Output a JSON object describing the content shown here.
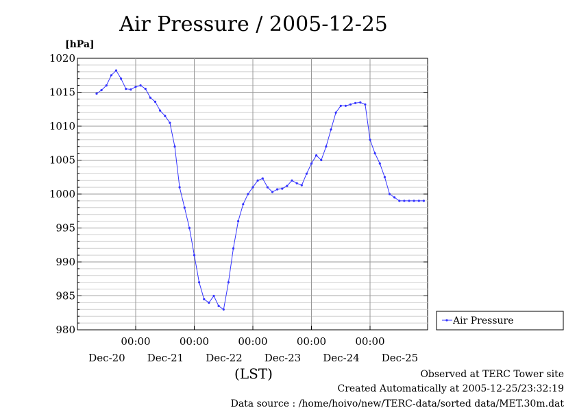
{
  "chart_data": {
    "type": "line",
    "title": "Air Pressure / 2005-12-25",
    "ylabel": "[hPa]",
    "xlabel": "(LST)",
    "ylim": [
      980,
      1020
    ],
    "yticks": [
      980,
      985,
      990,
      995,
      1000,
      1005,
      1010,
      1015,
      1020
    ],
    "xticks_time": [
      "00:00",
      "00:00",
      "00:00",
      "00:00",
      "00:00"
    ],
    "xticks_date": [
      "Dec-20",
      "Dec-21",
      "Dec-22",
      "Dec-23",
      "Dec-24",
      "Dec-25"
    ],
    "grid": true,
    "legend_position": "right",
    "series": [
      {
        "name": "Air Pressure",
        "color": "#3333ff",
        "x_hours": [
          0,
          2,
          4,
          6,
          8,
          10,
          12,
          14,
          16,
          18,
          20,
          22,
          24,
          26,
          28,
          30,
          32,
          34,
          36,
          38,
          40,
          42,
          44,
          46,
          48,
          50,
          52,
          54,
          56,
          58,
          60,
          62,
          64,
          66,
          68,
          70,
          72,
          74,
          76,
          78,
          80,
          82,
          84,
          86,
          88,
          90,
          92,
          94,
          96,
          98,
          100,
          102,
          104,
          106,
          108,
          110,
          112,
          114,
          116,
          118,
          120,
          122,
          124,
          126,
          128,
          130,
          132,
          134,
          136,
          138,
          140,
          142,
          144
        ],
        "values": [
          1014.8,
          1015.3,
          1016.0,
          1017.5,
          1018.2,
          1017.0,
          1015.5,
          1015.4,
          1015.8,
          1016.0,
          1015.5,
          1014.2,
          1013.6,
          1012.3,
          1011.5,
          1010.5,
          1007.0,
          1001.0,
          998.0,
          995.0,
          991.0,
          987.0,
          984.5,
          984.0,
          985.0,
          983.5,
          983.0,
          987.0,
          992.0,
          996.0,
          998.5,
          1000.0,
          1001.0,
          1002.0,
          1002.3,
          1001.0,
          1000.3,
          1000.7,
          1000.8,
          1001.2,
          1002.0,
          1001.6,
          1001.3,
          1003.0,
          1004.5,
          1005.7,
          1005.0,
          1007.0,
          1009.5,
          1012.0,
          1013.0,
          1013.0,
          1013.2,
          1013.4,
          1013.5,
          1013.2,
          1008.0,
          1006.0,
          1004.5,
          1002.5,
          1000.0,
          999.5,
          999.0,
          999.0,
          999.0,
          999.0,
          999.0,
          999.0,
          999.0,
          999.0,
          999.0,
          999.0,
          999.0
        ]
      }
    ]
  },
  "footer": {
    "line1": "Observed at TERC Tower site",
    "line2": "Created Automatically at 2005-12-25/23:32:19",
    "line3": "Data source : /home/hoivo/new/TERC-data/sorted  data/MET.30m.dat"
  }
}
